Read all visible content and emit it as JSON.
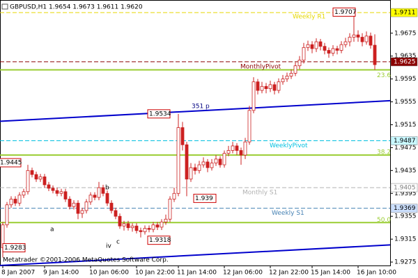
{
  "chart_data": {
    "type": "candlestick",
    "title": "GBPUSD,H1  1.9654 1.9673 1.9611 1.9620",
    "copyright": "Metatrader ©2001-2006 MetaQuotes Software Corp.",
    "categories": [
      "8 Jan 2007",
      null,
      null,
      null,
      null,
      null,
      null,
      null,
      null,
      null,
      "9 Jan 14:00",
      null,
      null,
      null,
      null,
      null,
      null,
      null,
      null,
      null,
      null,
      "10 Jan 06:00",
      null,
      null,
      null,
      null,
      null,
      null,
      null,
      null,
      null,
      null,
      "10 Jan 22:00",
      null,
      null,
      null,
      null,
      null,
      null,
      null,
      null,
      null,
      "11 Jan 14:00",
      null,
      null,
      null,
      null,
      null,
      null,
      null,
      null,
      null,
      null,
      "12 Jan 06:00",
      null,
      null,
      null,
      null,
      null,
      null,
      null,
      null,
      null,
      null,
      "12 Jan 22:00",
      null,
      null,
      null,
      null,
      null,
      null,
      null,
      null,
      null,
      "15 Jan 14:00",
      null,
      null,
      null,
      null,
      null,
      null,
      null,
      null,
      null,
      null,
      "16 Jan 10:00",
      null,
      null,
      null,
      null
    ],
    "open": [
      1.93,
      1.934,
      1.9375,
      1.9385,
      1.9378,
      1.9392,
      1.9398,
      1.9435,
      1.9428,
      1.942,
      1.9424,
      1.941,
      1.9404,
      1.94,
      1.9395,
      1.9398,
      1.9385,
      1.9372,
      1.9378,
      1.936,
      1.9365,
      1.938,
      1.9392,
      1.9388,
      1.9405,
      1.9395,
      1.9378,
      1.9365,
      1.9355,
      1.9338,
      1.9342,
      1.9335,
      1.9338,
      1.933,
      1.9328,
      1.9334,
      1.9332,
      1.934,
      1.9336,
      1.9345,
      1.935,
      1.9385,
      1.9395,
      1.951,
      1.948,
      1.942,
      1.944,
      1.9435,
      1.9445,
      1.945,
      1.944,
      1.9448,
      1.9455,
      1.9445,
      1.9465,
      1.947,
      1.9478,
      1.947,
      1.9462,
      1.9485,
      1.954,
      1.959,
      1.9575,
      1.9582,
      1.9578,
      1.9585,
      1.9575,
      1.959,
      1.9595,
      1.96,
      1.9605,
      1.9618,
      1.9628,
      1.965,
      1.9655,
      1.9648,
      1.966,
      1.9652,
      1.9645,
      1.964,
      1.9648,
      1.9645,
      1.9655,
      1.966,
      1.9668,
      1.9672,
      1.9668,
      1.966,
      1.967,
      1.9654
    ],
    "high": [
      1.9345,
      1.938,
      1.939,
      1.939,
      1.9397,
      1.9403,
      1.9445,
      1.944,
      1.9433,
      1.9429,
      1.9429,
      1.9415,
      1.9409,
      1.9405,
      1.9403,
      1.9403,
      1.939,
      1.9383,
      1.9383,
      1.937,
      1.9385,
      1.9397,
      1.9397,
      1.9415,
      1.941,
      1.94,
      1.9383,
      1.937,
      1.936,
      1.9347,
      1.9347,
      1.9343,
      1.9343,
      1.9335,
      1.9339,
      1.9339,
      1.9345,
      1.9345,
      1.935,
      1.9358,
      1.939,
      1.9405,
      1.9534,
      1.952,
      1.9485,
      1.9448,
      1.9447,
      1.9452,
      1.9458,
      1.9455,
      1.9455,
      1.9462,
      1.946,
      1.947,
      1.9478,
      1.9485,
      1.9483,
      1.9475,
      1.9492,
      1.9548,
      1.9598,
      1.9595,
      1.959,
      1.9588,
      1.9592,
      1.959,
      1.9596,
      1.9602,
      1.9606,
      1.9612,
      1.9624,
      1.9635,
      1.9658,
      1.9662,
      1.9661,
      1.9666,
      1.9665,
      1.9658,
      1.965,
      1.9654,
      1.9653,
      1.9661,
      1.9667,
      1.9675,
      1.9707,
      1.968,
      1.9675,
      1.9678,
      1.9676,
      1.9673
    ],
    "low": [
      1.9283,
      1.9335,
      1.937,
      1.9373,
      1.9373,
      1.9387,
      1.9393,
      1.9423,
      1.9415,
      1.9415,
      1.9405,
      1.9399,
      1.9395,
      1.939,
      1.939,
      1.938,
      1.9367,
      1.9367,
      1.935,
      1.9352,
      1.936,
      1.9375,
      1.9383,
      1.9383,
      1.939,
      1.9373,
      1.936,
      1.935,
      1.9333,
      1.933,
      1.933,
      1.9328,
      1.9325,
      1.9318,
      1.9323,
      1.9327,
      1.9327,
      1.9331,
      1.9331,
      1.934,
      1.9345,
      1.938,
      1.939,
      1.947,
      1.939,
      1.9415,
      1.9428,
      1.943,
      1.944,
      1.9432,
      1.9435,
      1.9443,
      1.944,
      1.944,
      1.946,
      1.9465,
      1.9462,
      1.9445,
      1.9455,
      1.948,
      1.9535,
      1.9568,
      1.957,
      1.957,
      1.9572,
      1.9568,
      1.957,
      1.9585,
      1.959,
      1.9595,
      1.96,
      1.9612,
      1.9622,
      1.9644,
      1.964,
      1.9642,
      1.9645,
      1.9638,
      1.9632,
      1.9635,
      1.9638,
      1.964,
      1.965,
      1.9652,
      1.966,
      1.966,
      1.9652,
      1.9655,
      1.9648,
      1.9611
    ],
    "close": [
      1.934,
      1.9375,
      1.9385,
      1.9378,
      1.9392,
      1.9398,
      1.9435,
      1.9428,
      1.942,
      1.9424,
      1.941,
      1.9404,
      1.94,
      1.9395,
      1.9398,
      1.9385,
      1.9372,
      1.9378,
      1.936,
      1.9365,
      1.938,
      1.9392,
      1.9388,
      1.9405,
      1.9395,
      1.9378,
      1.9365,
      1.9355,
      1.9338,
      1.9342,
      1.9335,
      1.9338,
      1.933,
      1.9328,
      1.9334,
      1.9332,
      1.934,
      1.9336,
      1.9345,
      1.935,
      1.9385,
      1.9395,
      1.951,
      1.948,
      1.942,
      1.944,
      1.9435,
      1.9445,
      1.945,
      1.944,
      1.9448,
      1.9455,
      1.9445,
      1.9465,
      1.947,
      1.9478,
      1.947,
      1.9462,
      1.9485,
      1.954,
      1.959,
      1.9575,
      1.9582,
      1.9578,
      1.9585,
      1.9575,
      1.959,
      1.9595,
      1.96,
      1.9605,
      1.9618,
      1.9628,
      1.965,
      1.9655,
      1.9648,
      1.966,
      1.9652,
      1.9645,
      1.964,
      1.9648,
      1.9645,
      1.9655,
      1.966,
      1.9668,
      1.9672,
      1.9668,
      1.966,
      1.967,
      1.9654,
      1.962
    ],
    "up_color": "#ffffff",
    "down_color": "#cc2020",
    "wick_color": "#cc2020",
    "ylim": [
      1.9269,
      1.9733
    ],
    "yticks": [
      1.9675,
      1.9635,
      1.9595,
      1.9555,
      1.9515,
      1.9475,
      1.9435,
      1.9395,
      1.9355,
      1.9315,
      1.9275
    ],
    "levels": [
      {
        "name": "Weekly R1",
        "value": 1.9711,
        "color": "#e6d800",
        "dash": true
      },
      {
        "name": "MonthlyPivot",
        "value": 1.9625,
        "color": "#8b0000",
        "dash": true
      },
      {
        "name": "WeeklyPivot",
        "value": 1.9487,
        "color": "#00c0e0",
        "dash": true
      },
      {
        "name": "Monthly S1",
        "value": 1.9405,
        "color": "#b0b0b0",
        "dash": true
      },
      {
        "name": "Weekly S1",
        "value": 1.9369,
        "color": "#4682b4",
        "dash": true
      },
      {
        "name": "23.6",
        "value": 1.9611,
        "color": "#9acd32",
        "dash": false
      },
      {
        "name": "38.2",
        "value": 1.9462,
        "color": "#9acd32",
        "dash": false
      },
      {
        "name": "50.0",
        "value": 1.9344,
        "color": "#9acd32",
        "dash": false
      }
    ],
    "trendlines": [
      {
        "name": "351 p",
        "color": "#0000cc",
        "values": [
          1.9521,
          1.9557
        ]
      },
      {
        "color": "#0000cc",
        "values": [
          1.9269,
          1.9305
        ]
      }
    ],
    "price_tags": [
      {
        "value": 1.9711,
        "color": "#ffff00",
        "text_color": "#000000"
      },
      {
        "value": 1.9625,
        "color": "#8b0000",
        "text_color": "#ffffff"
      },
      {
        "value": 1.9487,
        "color": "#c8f8ff",
        "text_color": "#000000"
      },
      {
        "value": 1.9405,
        "color": "#ffffff",
        "text_color": "#808080"
      },
      {
        "value": 1.9369,
        "color": "#cce0ff",
        "text_color": "#000000"
      }
    ],
    "wave_labels": [
      "a",
      "b",
      "c",
      "iv"
    ]
  }
}
